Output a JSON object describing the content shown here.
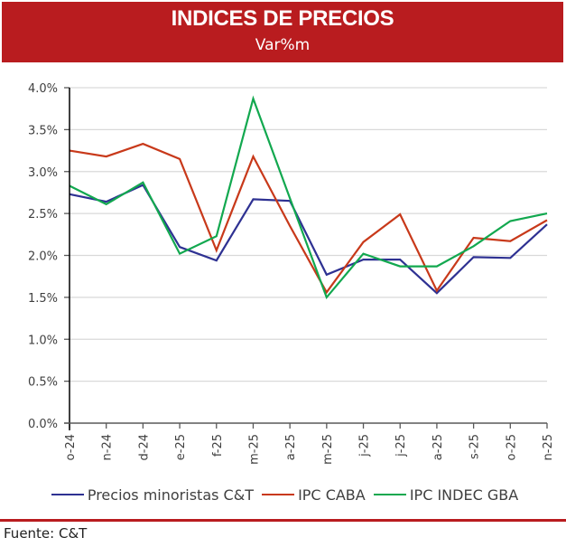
{
  "header": {
    "title": "INDICES DE PRECIOS",
    "subtitle": "Var%m"
  },
  "chart_data": {
    "type": "line",
    "title": "INDICES DE PRECIOS",
    "subtitle": "Var%m",
    "xlabel": "",
    "ylabel": "",
    "categories": [
      "o-24",
      "n-24",
      "d-24",
      "e-25",
      "f-25",
      "m-25",
      "a-25",
      "m-25",
      "j-25",
      "j-25",
      "a-25",
      "s-25",
      "o-25",
      "n-25"
    ],
    "ylim": [
      0,
      4.0
    ],
    "yticks": [
      0,
      0.5,
      1.0,
      1.5,
      2.0,
      2.5,
      3.0,
      3.5,
      4.0
    ],
    "ytick_labels": [
      "0.0%",
      "0.5%",
      "1.0%",
      "1.5%",
      "2.0%",
      "2.5%",
      "3.0%",
      "3.5%",
      "4.0%"
    ],
    "grid": true,
    "legend_position": "bottom",
    "series": [
      {
        "name": "Precios minoristas C&T",
        "color": "#2E3192",
        "values": [
          2.73,
          2.64,
          2.84,
          2.1,
          1.94,
          2.67,
          2.65,
          1.77,
          1.95,
          1.95,
          1.55,
          1.98,
          1.97,
          2.37
        ]
      },
      {
        "name": "IPC CABA",
        "color": "#C8391A",
        "values": [
          3.25,
          3.18,
          3.33,
          3.15,
          2.06,
          3.18,
          2.35,
          1.56,
          2.16,
          2.49,
          1.58,
          2.21,
          2.17,
          2.42
        ]
      },
      {
        "name": "IPC INDEC GBA",
        "color": "#12A84F",
        "values": [
          2.83,
          2.61,
          2.87,
          2.02,
          2.23,
          3.87,
          2.68,
          1.5,
          2.02,
          1.87,
          1.87,
          2.11,
          2.41,
          2.5
        ]
      }
    ]
  },
  "footer": {
    "source": "Fuente: C&T"
  },
  "colors": {
    "brand_red": "#B91C1F",
    "grid": "#D9D9D9",
    "axis": "#000000"
  }
}
